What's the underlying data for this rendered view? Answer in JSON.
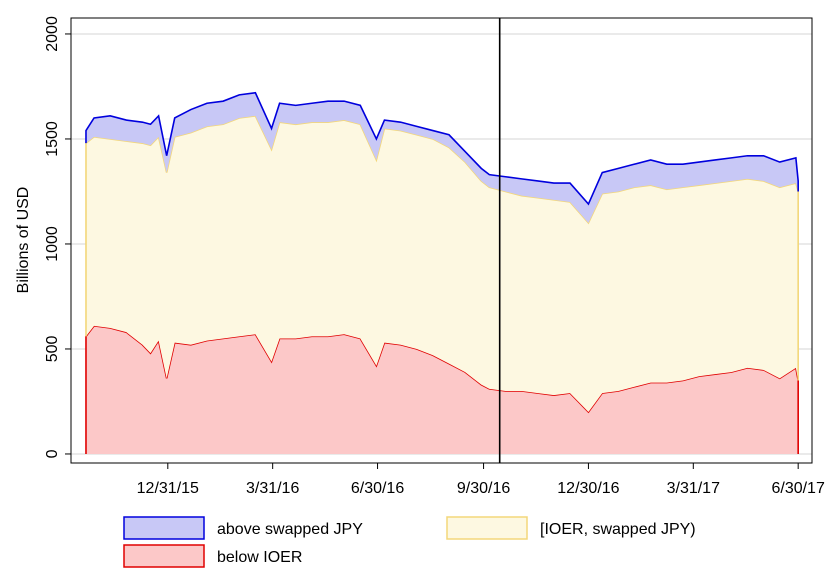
{
  "chart_data": {
    "type": "stacked_area",
    "ylabel": "Billions of USD",
    "x": [
      "10/21/15",
      "10/28/15",
      "11/11/15",
      "11/25/15",
      "12/9/15",
      "12/16/15",
      "12/23/15",
      "12/30/15",
      "1/6/16",
      "1/20/16",
      "2/3/16",
      "2/17/16",
      "3/2/16",
      "3/16/16",
      "3/30/16",
      "4/6/16",
      "4/20/16",
      "5/4/16",
      "5/18/16",
      "6/1/16",
      "6/15/16",
      "6/29/16",
      "7/6/16",
      "7/20/16",
      "8/3/16",
      "8/17/16",
      "8/31/16",
      "9/14/16",
      "9/28/16",
      "10/5/16",
      "10/19/16",
      "11/2/16",
      "11/16/16",
      "11/30/16",
      "12/14/16",
      "12/30/16",
      "1/11/17",
      "1/25/17",
      "2/8/17",
      "2/22/17",
      "3/8/17",
      "3/22/17",
      "4/5/17",
      "4/19/17",
      "5/3/17",
      "5/17/17",
      "5/31/17",
      "6/14/17",
      "6/28/17",
      "6/30/17"
    ],
    "series": [
      {
        "name": "above swapped JPY",
        "color": "#0000dd",
        "fill": "#c8c8f6",
        "values": [
          60,
          90,
          110,
          100,
          100,
          100,
          100,
          80,
          90,
          110,
          110,
          110,
          110,
          110,
          100,
          90,
          90,
          90,
          100,
          90,
          90,
          100,
          40,
          40,
          40,
          40,
          60,
          50,
          60,
          60,
          70,
          80,
          80,
          80,
          90,
          90,
          100,
          110,
          110,
          120,
          120,
          110,
          110,
          110,
          110,
          110,
          120,
          120,
          120,
          50
        ]
      },
      {
        "name": "[IOER, swapped JPY)",
        "color": "#f3d77a",
        "fill": "#fdf8e1",
        "values": [
          920,
          900,
          900,
          910,
          960,
          990,
          970,
          980,
          980,
          1010,
          1020,
          1020,
          1040,
          1040,
          1010,
          1030,
          1020,
          1020,
          1020,
          1020,
          1020,
          980,
          1020,
          1020,
          1020,
          1030,
          1030,
          1000,
          970,
          960,
          950,
          930,
          930,
          930,
          910,
          900,
          950,
          950,
          950,
          940,
          920,
          920,
          910,
          910,
          910,
          900,
          900,
          910,
          880,
          900
        ]
      },
      {
        "name": "below IOER",
        "color": "#e00000",
        "fill": "#fcc8c8",
        "values": [
          560,
          610,
          600,
          580,
          520,
          480,
          540,
          360,
          530,
          520,
          540,
          550,
          560,
          570,
          440,
          550,
          550,
          560,
          560,
          570,
          550,
          420,
          530,
          520,
          500,
          470,
          430,
          390,
          330,
          310,
          300,
          300,
          290,
          280,
          290,
          200,
          290,
          300,
          320,
          340,
          340,
          350,
          370,
          380,
          390,
          410,
          400,
          360,
          410,
          350
        ]
      }
    ],
    "xlim": [
      "10/8/15",
      "7/12/17"
    ],
    "xticks": [
      "12/31/15",
      "3/31/16",
      "6/30/16",
      "9/30/16",
      "12/30/16",
      "3/31/17",
      "6/30/17"
    ],
    "ylim": [
      -43,
      2076
    ],
    "yticks": [
      0,
      500,
      1000,
      1500,
      2000
    ],
    "grid": true,
    "vline_x": "10/14/16",
    "legend": "bottom"
  }
}
